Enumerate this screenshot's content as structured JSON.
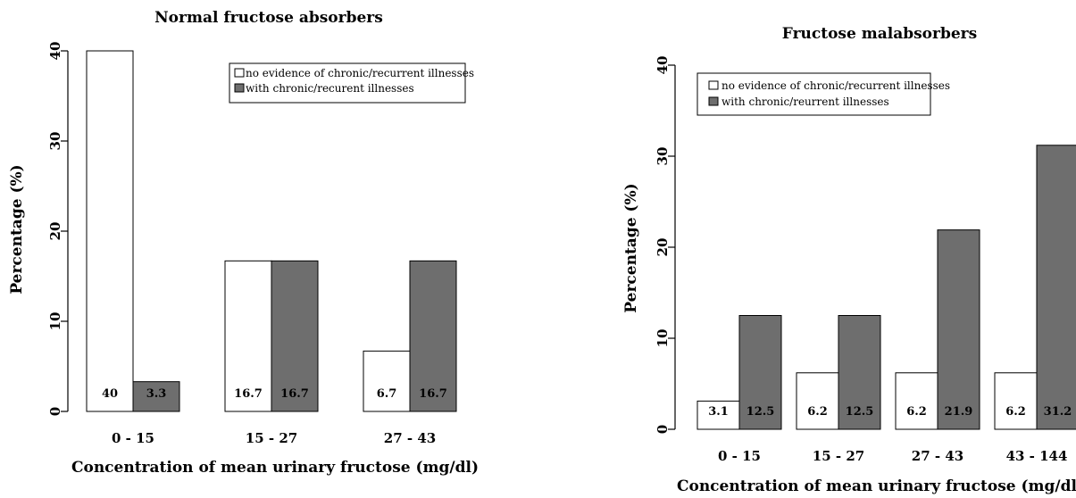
{
  "chart_data": [
    {
      "type": "bar",
      "title": "Normal fructose absorbers",
      "xlabel": "Concentration of mean urinary fructose (mg/dl)",
      "ylabel": "Percentage (%)",
      "ylim": [
        0,
        40
      ],
      "yticks": [
        "0",
        "10",
        "20",
        "30",
        "40"
      ],
      "categories": [
        "0 - 15",
        "15 - 27",
        "27 - 43"
      ],
      "series": [
        {
          "name": "no evidence of chronic/recurrent illnesses",
          "values": [
            40,
            16.7,
            6.7
          ],
          "labels": [
            "40",
            "16.7",
            "6.7"
          ],
          "color": "#ffffff"
        },
        {
          "name": "with chronic/recurent illnesses",
          "values": [
            3.3,
            16.7,
            16.7
          ],
          "labels": [
            "3.3",
            "16.7",
            "16.7"
          ],
          "color": "#6e6e6e"
        }
      ],
      "legend": "top-right",
      "grid": false
    },
    {
      "type": "bar",
      "title": "Fructose malabsorbers",
      "xlabel": "Concentration of mean urinary fructose (mg/dl)",
      "ylabel": "Percentage (%)",
      "ylim": [
        0,
        40
      ],
      "yticks": [
        "0",
        "10",
        "20",
        "30",
        "40"
      ],
      "categories": [
        "0 - 15",
        "15 - 27",
        "27 - 43",
        "43 - 144"
      ],
      "series": [
        {
          "name": "no evidence of chronic/recurrent illnesses",
          "values": [
            3.1,
            6.2,
            6.2,
            6.2
          ],
          "labels": [
            "3.1",
            "6.2",
            "6.2",
            "6.2"
          ],
          "color": "#ffffff"
        },
        {
          "name": "with chronic/reurrent illnesses",
          "values": [
            12.5,
            12.5,
            21.9,
            31.2
          ],
          "labels": [
            "12.5",
            "12.5",
            "21.9",
            "31.2"
          ],
          "color": "#6e6e6e"
        }
      ],
      "legend": "top-left",
      "grid": false
    }
  ]
}
